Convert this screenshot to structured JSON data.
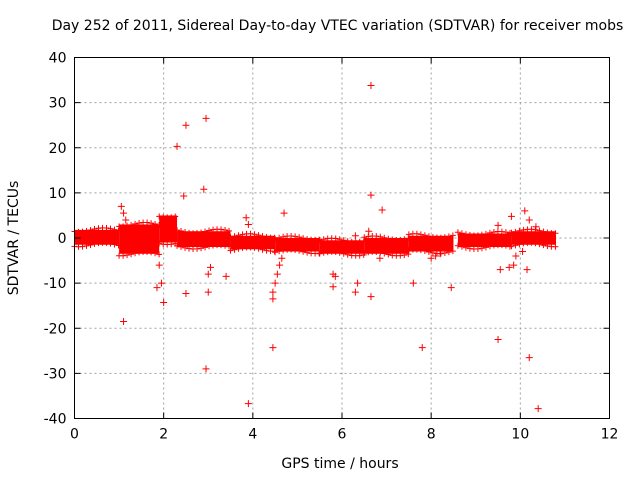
{
  "chart_data": {
    "type": "scatter",
    "title": "Day 252 of 2011, Sidereal Day-to-day VTEC variation (SDTVAR) for receiver mobs",
    "xlabel": "GPS time / hours",
    "ylabel": "SDTVAR / TECUs",
    "xlim": [
      0,
      12
    ],
    "ylim": [
      -40,
      40
    ],
    "xticks": [
      0,
      2,
      4,
      6,
      8,
      10,
      12
    ],
    "yticks": [
      -40,
      -30,
      -20,
      -10,
      0,
      10,
      20,
      30,
      40
    ],
    "grid": true,
    "marker": "+",
    "color": "#ff0000",
    "band_segments": [
      {
        "x": [
          0.0,
          1.0
        ],
        "y_low": -1.5,
        "y_high": 1.8
      },
      {
        "x": [
          1.0,
          1.9
        ],
        "y_low": -3.5,
        "y_high": 3.0
      },
      {
        "x": [
          1.9,
          2.3
        ],
        "y_low": -1.0,
        "y_high": 5.0
      },
      {
        "x": [
          2.3,
          3.5
        ],
        "y_low": -2.0,
        "y_high": 1.5
      },
      {
        "x": [
          3.5,
          4.5
        ],
        "y_low": -2.5,
        "y_high": 0.5
      },
      {
        "x": [
          4.5,
          5.5
        ],
        "y_low": -3.0,
        "y_high": 0.0
      },
      {
        "x": [
          5.5,
          6.5
        ],
        "y_low": -3.5,
        "y_high": -0.5
      },
      {
        "x": [
          6.5,
          7.5
        ],
        "y_low": -3.5,
        "y_high": 0.0
      },
      {
        "x": [
          7.5,
          8.5
        ],
        "y_low": -3.0,
        "y_high": 0.5
      },
      {
        "x": [
          8.6,
          9.8
        ],
        "y_low": -2.0,
        "y_high": 1.0
      },
      {
        "x": [
          9.8,
          10.8
        ],
        "y_low": -1.5,
        "y_high": 1.5
      }
    ],
    "series": [
      {
        "name": "mobs",
        "points": [
          [
            1.05,
            7.0
          ],
          [
            1.1,
            5.5
          ],
          [
            1.15,
            4.0
          ],
          [
            1.1,
            -18.5
          ],
          [
            1.85,
            -11.0
          ],
          [
            1.9,
            -6.0
          ],
          [
            1.95,
            -10.0
          ],
          [
            2.0,
            -14.3
          ],
          [
            2.3,
            20.3
          ],
          [
            2.5,
            25.0
          ],
          [
            2.45,
            9.3
          ],
          [
            2.5,
            -12.3
          ],
          [
            2.95,
            26.5
          ],
          [
            2.9,
            10.8
          ],
          [
            3.0,
            -12.0
          ],
          [
            2.95,
            -29.0
          ],
          [
            3.0,
            -8.0
          ],
          [
            3.05,
            -6.5
          ],
          [
            3.4,
            -8.5
          ],
          [
            3.85,
            4.5
          ],
          [
            3.9,
            3.0
          ],
          [
            3.9,
            -36.7
          ],
          [
            4.45,
            -24.3
          ],
          [
            4.7,
            5.5
          ],
          [
            4.45,
            -13.5
          ],
          [
            4.45,
            -12.0
          ],
          [
            4.5,
            -10.0
          ],
          [
            4.55,
            -8.0
          ],
          [
            4.6,
            -6.0
          ],
          [
            4.65,
            -4.5
          ],
          [
            5.8,
            -8.0
          ],
          [
            5.85,
            -8.5
          ],
          [
            5.8,
            -10.8
          ],
          [
            6.3,
            0.5
          ],
          [
            6.35,
            -10.0
          ],
          [
            6.3,
            -12.0
          ],
          [
            6.65,
            33.8
          ],
          [
            6.65,
            9.5
          ],
          [
            6.6,
            1.5
          ],
          [
            6.65,
            -13.0
          ],
          [
            6.9,
            6.2
          ],
          [
            6.85,
            -4.5
          ],
          [
            7.6,
            -10.0
          ],
          [
            7.8,
            -24.3
          ],
          [
            8.0,
            -4.5
          ],
          [
            8.1,
            -4.0
          ],
          [
            8.2,
            -3.5
          ],
          [
            8.45,
            -11.0
          ],
          [
            9.5,
            2.8
          ],
          [
            9.55,
            -7.0
          ],
          [
            9.5,
            -22.5
          ],
          [
            9.8,
            4.8
          ],
          [
            9.75,
            -6.5
          ],
          [
            9.85,
            -6.0
          ],
          [
            9.9,
            -4.0
          ],
          [
            10.05,
            -3.0
          ],
          [
            10.1,
            6.0
          ],
          [
            10.2,
            4.0
          ],
          [
            10.15,
            -7.0
          ],
          [
            10.2,
            -26.5
          ],
          [
            10.35,
            2.5
          ],
          [
            10.4,
            -37.8
          ],
          [
            10.5,
            -1.0
          ]
        ]
      }
    ]
  }
}
